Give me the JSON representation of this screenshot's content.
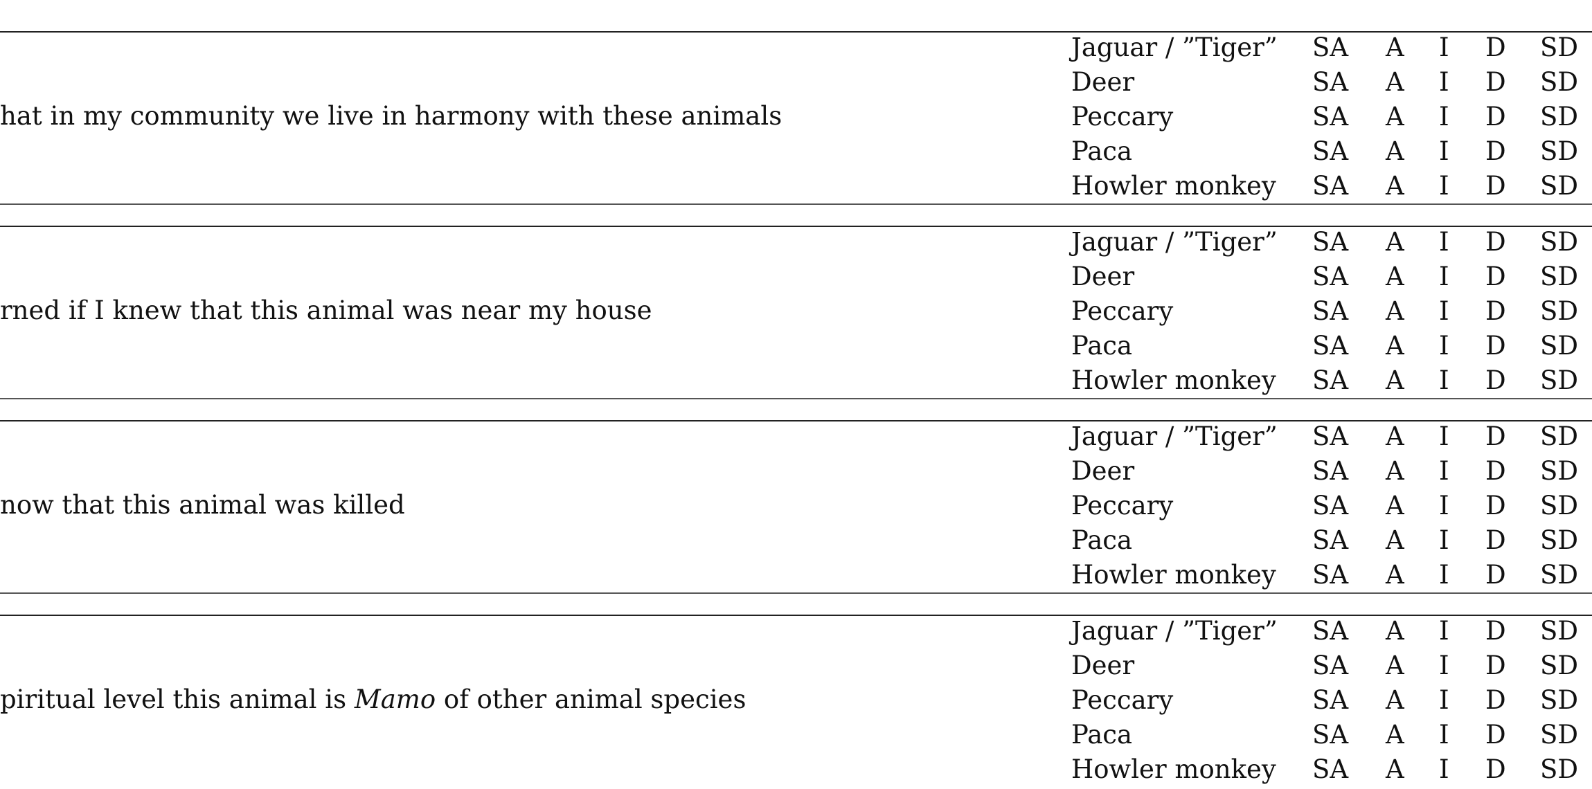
{
  "scale": [
    "SA",
    "A",
    "I",
    "D",
    "SD"
  ],
  "animals": [
    "Jaguar / ”Tiger”",
    "Deer",
    "Peccary",
    "Paca",
    "Howler monkey"
  ],
  "items": [
    {
      "statement_pre": "hat in my community we live in harmony with these animals",
      "statement_em": "",
      "statement_post": ""
    },
    {
      "statement_pre": "rned if I knew that this animal was near my house",
      "statement_em": "",
      "statement_post": ""
    },
    {
      "statement_pre": "now that this animal was killed",
      "statement_em": "",
      "statement_post": ""
    },
    {
      "statement_pre": "piritual level this animal is ",
      "statement_em": "Mamo",
      "statement_post": " of other animal species"
    }
  ]
}
